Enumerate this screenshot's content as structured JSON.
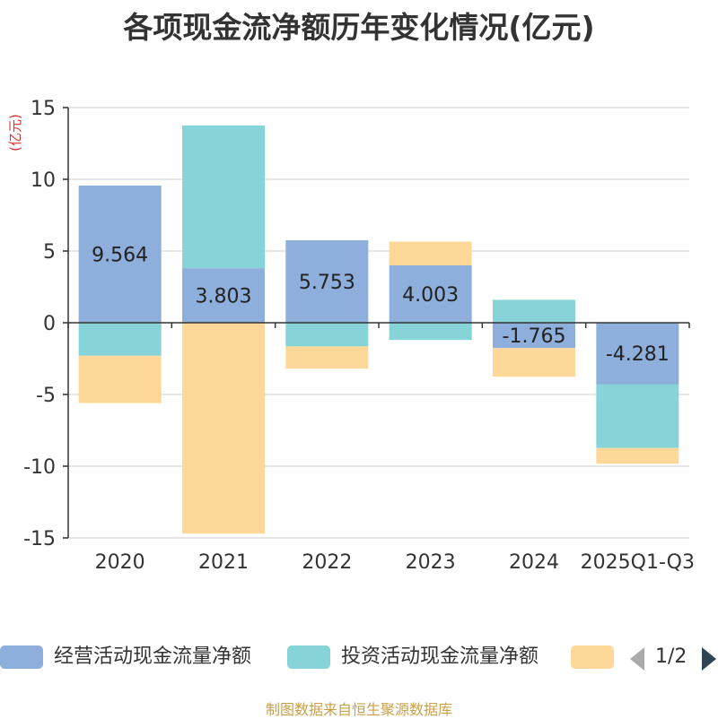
{
  "chart_data": {
    "type": "bar",
    "stacked": true,
    "title": "各项现金流净额历年变化情况(亿元)",
    "ylabel": "(亿元)",
    "xlabel": "",
    "ylim": [
      -15,
      15
    ],
    "yticks": [
      15,
      10,
      5,
      0,
      -5,
      -10,
      -15
    ],
    "categories": [
      "2020",
      "2021",
      "2022",
      "2023",
      "2024",
      "2025Q1-Q3"
    ],
    "series": [
      {
        "name": "经营活动现金流量净额",
        "color": "#8eaedc",
        "values": [
          9.564,
          3.803,
          5.753,
          4.003,
          -1.765,
          -4.281
        ],
        "labels": [
          "9.564",
          "3.803",
          "5.753",
          "4.003",
          "-1.765",
          "-4.281"
        ]
      },
      {
        "name": "投资活动现金流量净额",
        "color": "#86d4d8",
        "values": [
          -2.3,
          9.95,
          -1.65,
          -1.2,
          1.6,
          -4.45
        ]
      },
      {
        "name": "",
        "color": "#fdd899",
        "values": [
          -3.3,
          -14.7,
          -1.55,
          1.65,
          -2.0,
          -1.1
        ]
      }
    ],
    "legend_position": "bottom",
    "grid": true
  },
  "legend": {
    "items": [
      "经营活动现金流量净额",
      "投资活动现金流量净额",
      ""
    ],
    "page": "1/2"
  },
  "source": "制图数据来自恒生聚源数据库"
}
